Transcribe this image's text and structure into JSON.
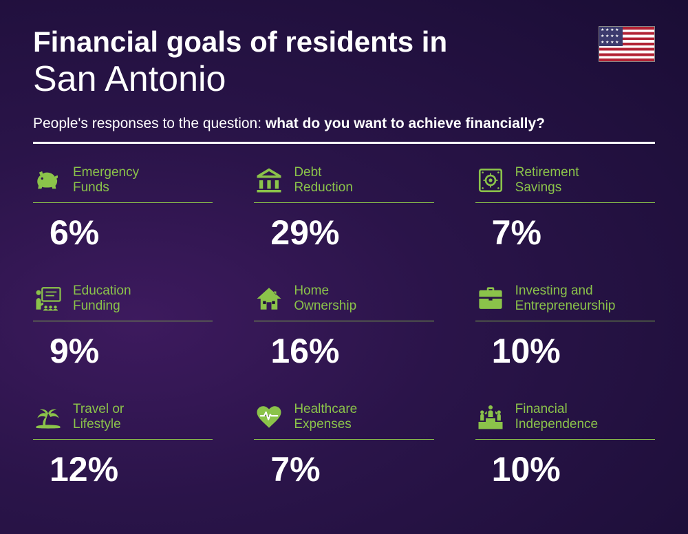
{
  "title_line1": "Financial goals of residents in",
  "title_line2": "San Antonio",
  "subtitle_prefix": "People's responses to the question: ",
  "subtitle_bold": "what do you want to achieve financially?",
  "flag_country": "United States",
  "colors": {
    "background_gradient_start": "#3d1a5e",
    "background_gradient_mid": "#2a1449",
    "background_gradient_end": "#1a0d35",
    "accent": "#8bc34a",
    "text_primary": "#ffffff",
    "divider": "#ffffff"
  },
  "typography": {
    "title_line1_size": 42,
    "title_line1_weight": 800,
    "title_line2_size": 52,
    "title_line2_weight": 300,
    "subtitle_size": 21,
    "label_size": 19,
    "value_size": 50,
    "value_weight": 800,
    "font_family": "Segoe UI, Arial, sans-serif"
  },
  "layout": {
    "columns": 3,
    "rows": 3,
    "column_gap": 60,
    "row_gap": 44
  },
  "items": [
    {
      "icon": "piggy-bank",
      "label": "Emergency\nFunds",
      "value": "6%"
    },
    {
      "icon": "bank",
      "label": "Debt\nReduction",
      "value": "29%"
    },
    {
      "icon": "safe",
      "label": "Retirement\nSavings",
      "value": "7%"
    },
    {
      "icon": "teacher",
      "label": "Education\nFunding",
      "value": "9%"
    },
    {
      "icon": "house",
      "label": "Home\nOwnership",
      "value": "16%"
    },
    {
      "icon": "briefcase",
      "label": "Investing and\nEntrepreneurship",
      "value": "10%"
    },
    {
      "icon": "palm",
      "label": "Travel or\nLifestyle",
      "value": "12%"
    },
    {
      "icon": "heart-pulse",
      "label": "Healthcare\nExpenses",
      "value": "7%"
    },
    {
      "icon": "podium",
      "label": "Financial\nIndependence",
      "value": "10%"
    }
  ]
}
